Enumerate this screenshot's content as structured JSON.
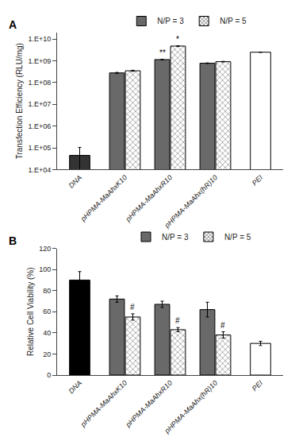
{
  "chart_data": [
    {
      "type": "bar",
      "title": "A",
      "categories": [
        "DNA",
        "pHPMA-MaAhxK10",
        "pHPMA-MaAhxR10",
        "pHPMA-MaAhx(hR)10",
        "PEI"
      ],
      "series": [
        {
          "name": "N/P = 3",
          "color": "#696969",
          "colors": [
            "#333333",
            "#696969",
            "#696969",
            "#696969",
            "white"
          ],
          "values": [
            45000.0,
            280000000.0,
            1150000000.0,
            780000000.0,
            2500000000.0
          ],
          "errors": [
            60000.0,
            15000000.0,
            30000000.0,
            25000000.0,
            50000000.0
          ]
        },
        {
          "name": "N/P = 5",
          "color": "#888888",
          "colors": [
            null,
            "#888888",
            "#888888",
            "#888888",
            null
          ],
          "values": [
            null,
            350000000.0,
            4800000000.0,
            920000000.0,
            null
          ],
          "errors": [
            null,
            20000000.0,
            180000000.0,
            30000000.0,
            null
          ]
        }
      ],
      "ylabel": "Transfection Efficiency (RLU/mg)",
      "log": "y",
      "ylim": [
        10000.0,
        20000000000.0
      ],
      "yticks": [
        {
          "value": 10000.0,
          "label": "1.E+04"
        },
        {
          "value": 100000.0,
          "label": "1.E+05"
        },
        {
          "value": 1000000.0,
          "label": "1.E+06"
        },
        {
          "value": 10000000.0,
          "label": "1.E+07"
        },
        {
          "value": 100000000.0,
          "label": "1.E+08"
        },
        {
          "value": 1000000000.0,
          "label": "1.E+09"
        },
        {
          "value": 10000000000.0,
          "label": "1.E+10"
        }
      ],
      "grid": false,
      "legend": "top",
      "annotations": [
        {
          "text": "**",
          "category": "pHPMA-MaAhxR10",
          "series": "N/P = 3"
        },
        {
          "text": "*",
          "category": "pHPMA-MaAhxR10",
          "series": "N/P = 5"
        }
      ]
    },
    {
      "type": "bar",
      "title": "B",
      "categories": [
        "DNA",
        "pHPMA-MaAhxK10",
        "pHPMA-MaAhxR10",
        "pHPMA-MaAhx(hR)10",
        "PEI"
      ],
      "series": [
        {
          "name": "N/P = 3",
          "color": "#696969",
          "colors": [
            "black",
            "#696969",
            "#696969",
            "#696969",
            null
          ],
          "values": [
            90,
            72,
            67,
            62,
            null
          ],
          "errors": [
            8,
            3,
            3,
            7,
            null
          ]
        },
        {
          "name": "N/P = 5",
          "color": "#888888",
          "colors": [
            null,
            "#888888",
            "#888888",
            "#888888",
            "white"
          ],
          "values": [
            null,
            55,
            43,
            38,
            30
          ],
          "errors": [
            null,
            3,
            2,
            3,
            2
          ]
        }
      ],
      "ylabel": "Relative Cell Viability (%)",
      "ylim": [
        0,
        120
      ],
      "yticks": [
        0,
        20,
        40,
        60,
        80,
        100,
        120
      ],
      "grid": false,
      "legend": "top",
      "annotations": [
        {
          "text": "#",
          "category": "pHPMA-MaAhxK10",
          "series": "N/P = 5"
        },
        {
          "text": "#",
          "category": "pHPMA-MaAhxR10",
          "series": "N/P = 5"
        },
        {
          "text": "#",
          "category": "pHPMA-MaAhx(hR)10",
          "series": "N/P = 5"
        }
      ]
    }
  ]
}
